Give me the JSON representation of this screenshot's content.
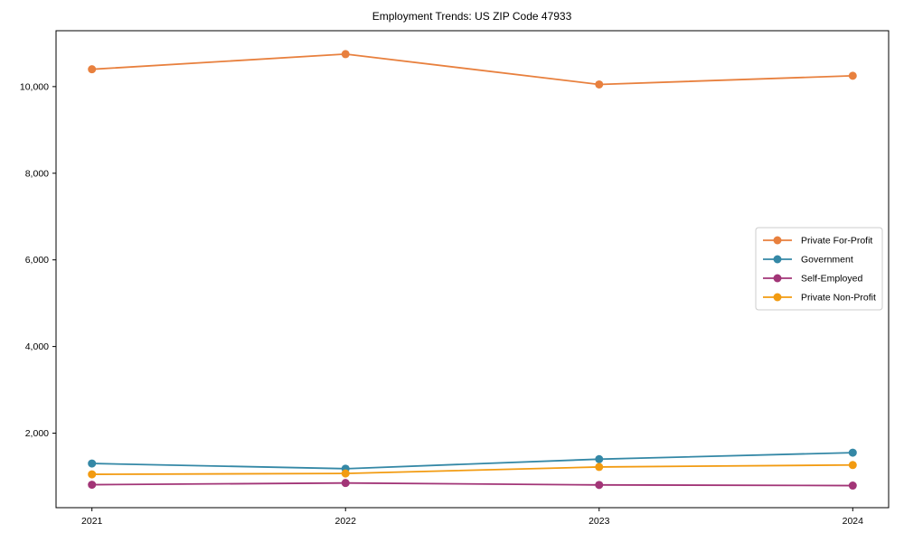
{
  "chart_data": {
    "type": "line",
    "title": "Employment Trends: US ZIP Code 47933",
    "x_categories": [
      "2021",
      "2022",
      "2023",
      "2024"
    ],
    "series": [
      {
        "name": "Private For-Profit",
        "color": "#E8803E",
        "values": [
          10400,
          10750,
          10050,
          10250
        ]
      },
      {
        "name": "Government",
        "color": "#3488A6",
        "values": [
          1300,
          1180,
          1400,
          1550
        ]
      },
      {
        "name": "Self-Employed",
        "color": "#A23577",
        "values": [
          810,
          850,
          805,
          790
        ]
      },
      {
        "name": "Private Non-Profit",
        "color": "#F29B11",
        "values": [
          1050,
          1070,
          1220,
          1265
        ]
      }
    ],
    "xlabel": "",
    "ylabel": "",
    "ylim": [
      280,
      11290
    ],
    "yticks": [
      2000,
      4000,
      6000,
      8000,
      10000
    ],
    "ytick_labels": [
      "2,000",
      "4,000",
      "6,000",
      "8,000",
      "10,000"
    ],
    "grid": false,
    "legend_position": "right-center",
    "axis_color": "#000000",
    "legend_border_color": "#cccccc"
  }
}
